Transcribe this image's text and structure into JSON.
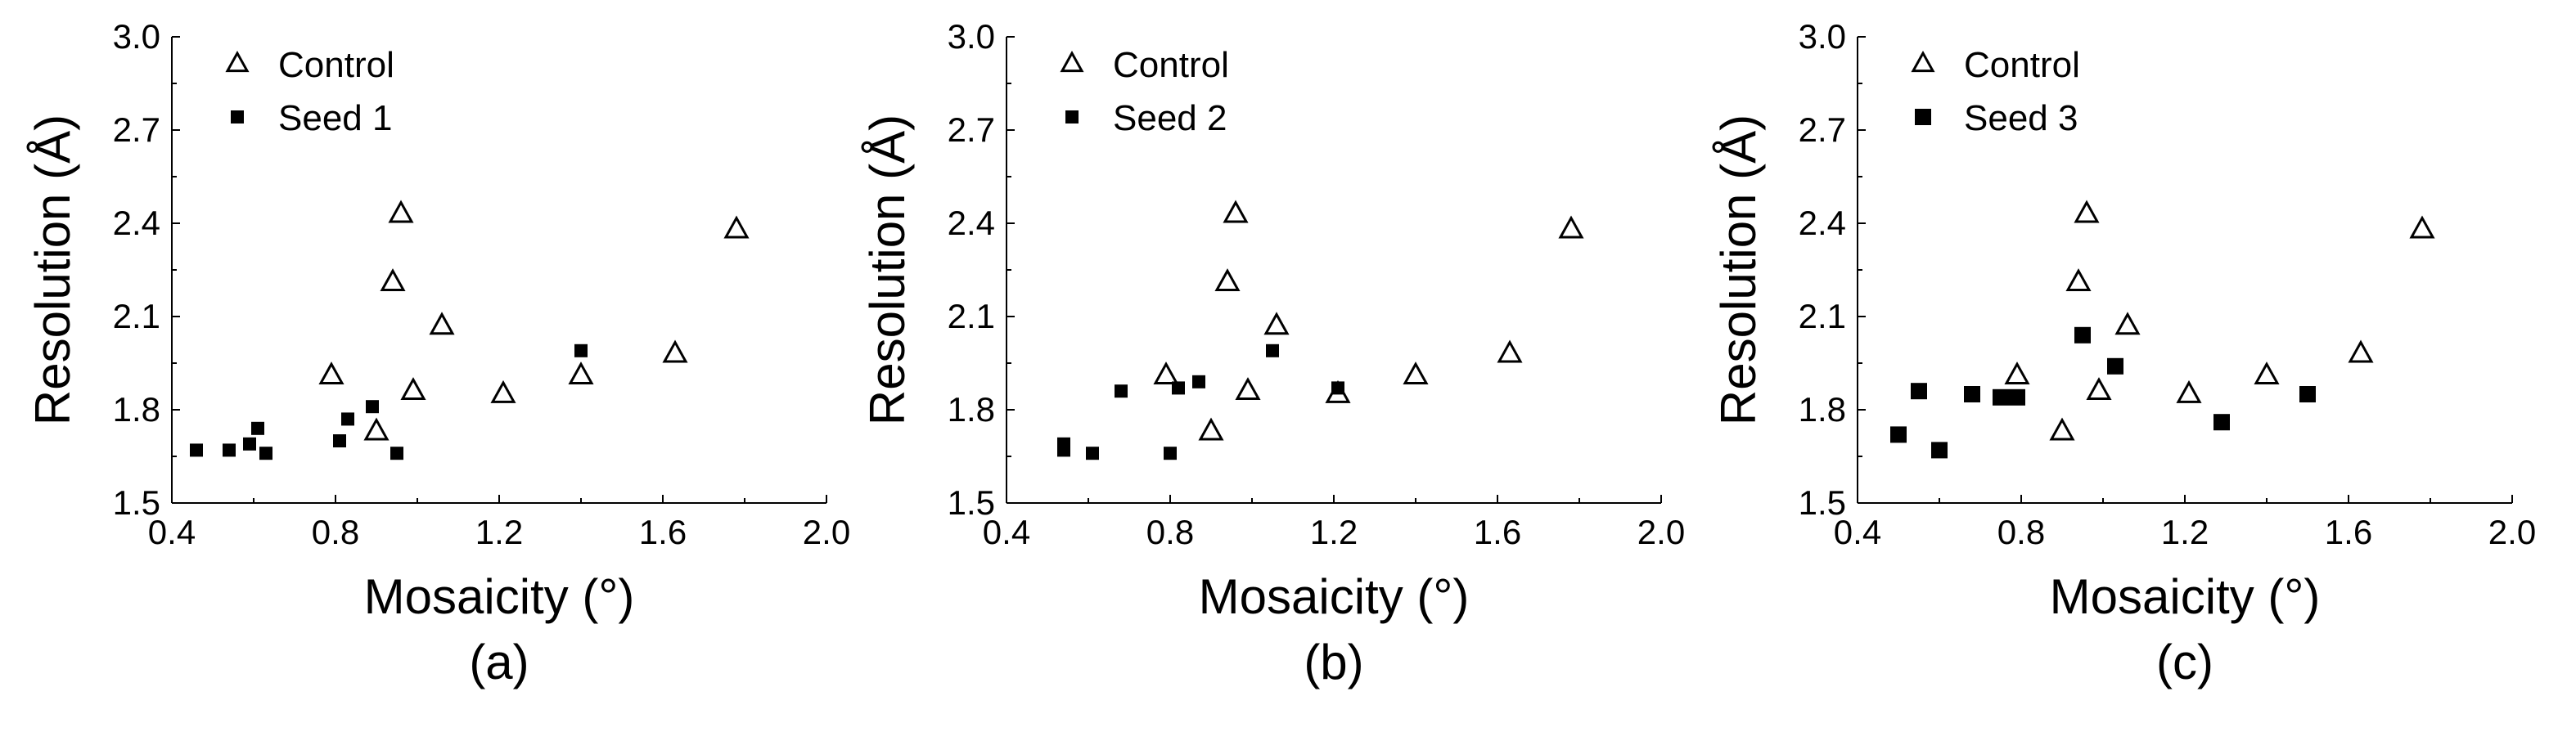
{
  "chart_data": [
    {
      "type": "scatter",
      "panel_label": "(a)",
      "xlabel": "Mosaicity (°)",
      "ylabel": "Resolution (Å)",
      "xlim": [
        0.4,
        2.0
      ],
      "ylim": [
        1.5,
        3.0
      ],
      "xticks": [
        0.4,
        0.8,
        1.2,
        1.6,
        2.0
      ],
      "xtick_labels": [
        "0.4",
        "0.8",
        "1.2",
        "1.6",
        "2.0"
      ],
      "yticks": [
        1.5,
        1.8,
        2.1,
        2.4,
        2.7,
        3.0
      ],
      "ytick_labels": [
        "1.5",
        "1.8",
        "2.1",
        "2.4",
        "2.7",
        "3.0"
      ],
      "legend_position": "top-left",
      "series": [
        {
          "name": "Control",
          "marker": "triangle",
          "x": [
            0.79,
            0.9,
            0.94,
            0.96,
            0.99,
            1.06,
            1.21,
            1.4,
            1.63,
            1.78
          ],
          "y": [
            1.91,
            1.73,
            2.21,
            2.43,
            1.86,
            2.07,
            1.85,
            1.91,
            1.98,
            2.38
          ]
        },
        {
          "name": "Seed 1",
          "marker": "square",
          "x": [
            0.46,
            0.54,
            0.59,
            0.61,
            0.63,
            0.81,
            0.83,
            0.89,
            0.95,
            1.4
          ],
          "y": [
            1.67,
            1.67,
            1.69,
            1.74,
            1.66,
            1.7,
            1.77,
            1.81,
            1.66,
            1.99
          ]
        }
      ]
    },
    {
      "type": "scatter",
      "panel_label": "(b)",
      "xlabel": "Mosaicity (°)",
      "ylabel": "Resolution (Å)",
      "xlim": [
        0.4,
        2.0
      ],
      "ylim": [
        1.5,
        3.0
      ],
      "xticks": [
        0.4,
        0.8,
        1.2,
        1.6,
        2.0
      ],
      "xtick_labels": [
        "0.4",
        "0.8",
        "1.2",
        "1.6",
        "2.0"
      ],
      "yticks": [
        1.5,
        1.8,
        2.1,
        2.4,
        2.7,
        3.0
      ],
      "ytick_labels": [
        "1.5",
        "1.8",
        "2.1",
        "2.4",
        "2.7",
        "3.0"
      ],
      "legend_position": "top-left",
      "series": [
        {
          "name": "Control",
          "marker": "triangle",
          "x": [
            0.79,
            0.9,
            0.94,
            0.96,
            0.99,
            1.06,
            1.21,
            1.4,
            1.63,
            1.78
          ],
          "y": [
            1.91,
            1.73,
            2.21,
            2.43,
            1.86,
            2.07,
            1.85,
            1.91,
            1.98,
            2.38
          ]
        },
        {
          "name": "Seed 2",
          "marker": "square",
          "x": [
            0.54,
            0.54,
            0.61,
            0.68,
            0.8,
            0.82,
            0.87,
            1.05,
            1.21
          ],
          "y": [
            1.69,
            1.67,
            1.66,
            1.86,
            1.66,
            1.87,
            1.89,
            1.99,
            1.87
          ]
        }
      ]
    },
    {
      "type": "scatter",
      "panel_label": "(c)",
      "xlabel": "Mosaicity (°)",
      "ylabel": "Resolution (Å)",
      "xlim": [
        0.4,
        2.0
      ],
      "ylim": [
        1.5,
        3.0
      ],
      "xticks": [
        0.4,
        0.8,
        1.2,
        1.6,
        2.0
      ],
      "xtick_labels": [
        "0.4",
        "0.8",
        "1.2",
        "1.6",
        "2.0"
      ],
      "yticks": [
        1.5,
        1.8,
        2.1,
        2.4,
        2.7,
        3.0
      ],
      "ytick_labels": [
        "1.5",
        "1.8",
        "2.1",
        "2.4",
        "2.7",
        "3.0"
      ],
      "legend_position": "top-left",
      "series": [
        {
          "name": "Control",
          "marker": "triangle",
          "x": [
            0.79,
            0.9,
            0.94,
            0.96,
            0.99,
            1.06,
            1.21,
            1.4,
            1.63,
            1.78
          ],
          "y": [
            1.91,
            1.73,
            2.21,
            2.43,
            1.86,
            2.07,
            1.85,
            1.91,
            1.98,
            2.38
          ]
        },
        {
          "name": "Seed 3",
          "marker": "square",
          "x": [
            0.5,
            0.55,
            0.6,
            0.68,
            0.75,
            0.79,
            0.95,
            1.03,
            1.29,
            1.5
          ],
          "y": [
            1.72,
            1.86,
            1.67,
            1.85,
            1.84,
            1.84,
            2.04,
            1.94,
            1.76,
            1.85
          ]
        }
      ]
    }
  ]
}
